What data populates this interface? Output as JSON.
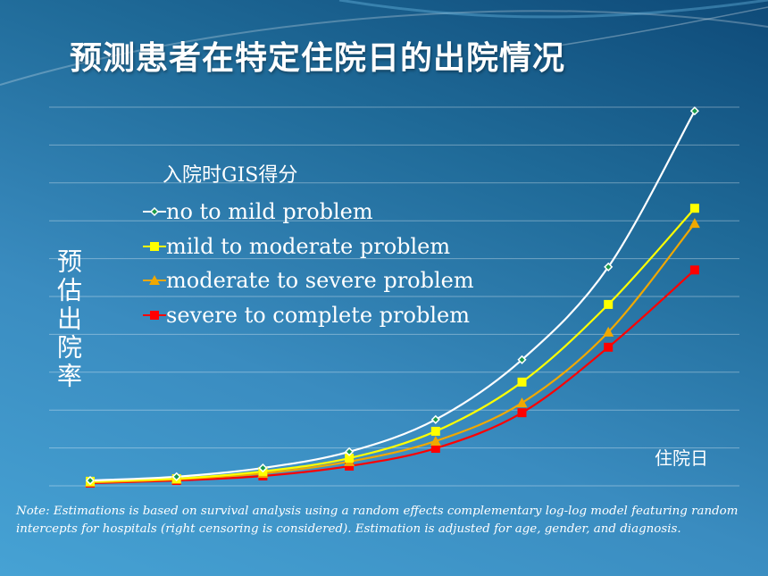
{
  "title": "预测患者在特定住院日的出院情况",
  "note": "Note: Estimations is based on survival analysis using a random effects complementary log-log model featuring random intercepts for hospitals (right censoring is considered). Estimation is adjusted for age, gender, and diagnosis.",
  "chart_data": {
    "type": "line",
    "title": "",
    "xlabel": "住院日",
    "ylabel": "预估出院率",
    "legend_title": "入院时GIS得分",
    "legend_placement": "top-left",
    "grid": true,
    "ylim": [
      0,
      10
    ],
    "x": [
      1,
      2,
      3,
      4,
      5,
      6,
      7,
      8
    ],
    "series": [
      {
        "name": "no to mild problem",
        "color": "#ffffff",
        "marker": "diamond",
        "values": [
          0.14,
          0.24,
          0.47,
          0.9,
          1.75,
          3.33,
          5.78,
          9.9
        ]
      },
      {
        "name": "mild to moderate problem",
        "color": "#ffff00",
        "marker": "square",
        "values": [
          0.12,
          0.19,
          0.38,
          0.73,
          1.44,
          2.74,
          4.79,
          7.33
        ]
      },
      {
        "name": "moderate to severe problem",
        "color": "#f0a800",
        "marker": "triangle",
        "values": [
          0.09,
          0.17,
          0.33,
          0.64,
          1.18,
          2.19,
          4.06,
          6.93
        ]
      },
      {
        "name": "severe to complete problem",
        "color": "#ff0000",
        "marker": "square",
        "values": [
          0.07,
          0.14,
          0.26,
          0.52,
          0.99,
          1.93,
          3.66,
          5.7
        ]
      }
    ]
  }
}
